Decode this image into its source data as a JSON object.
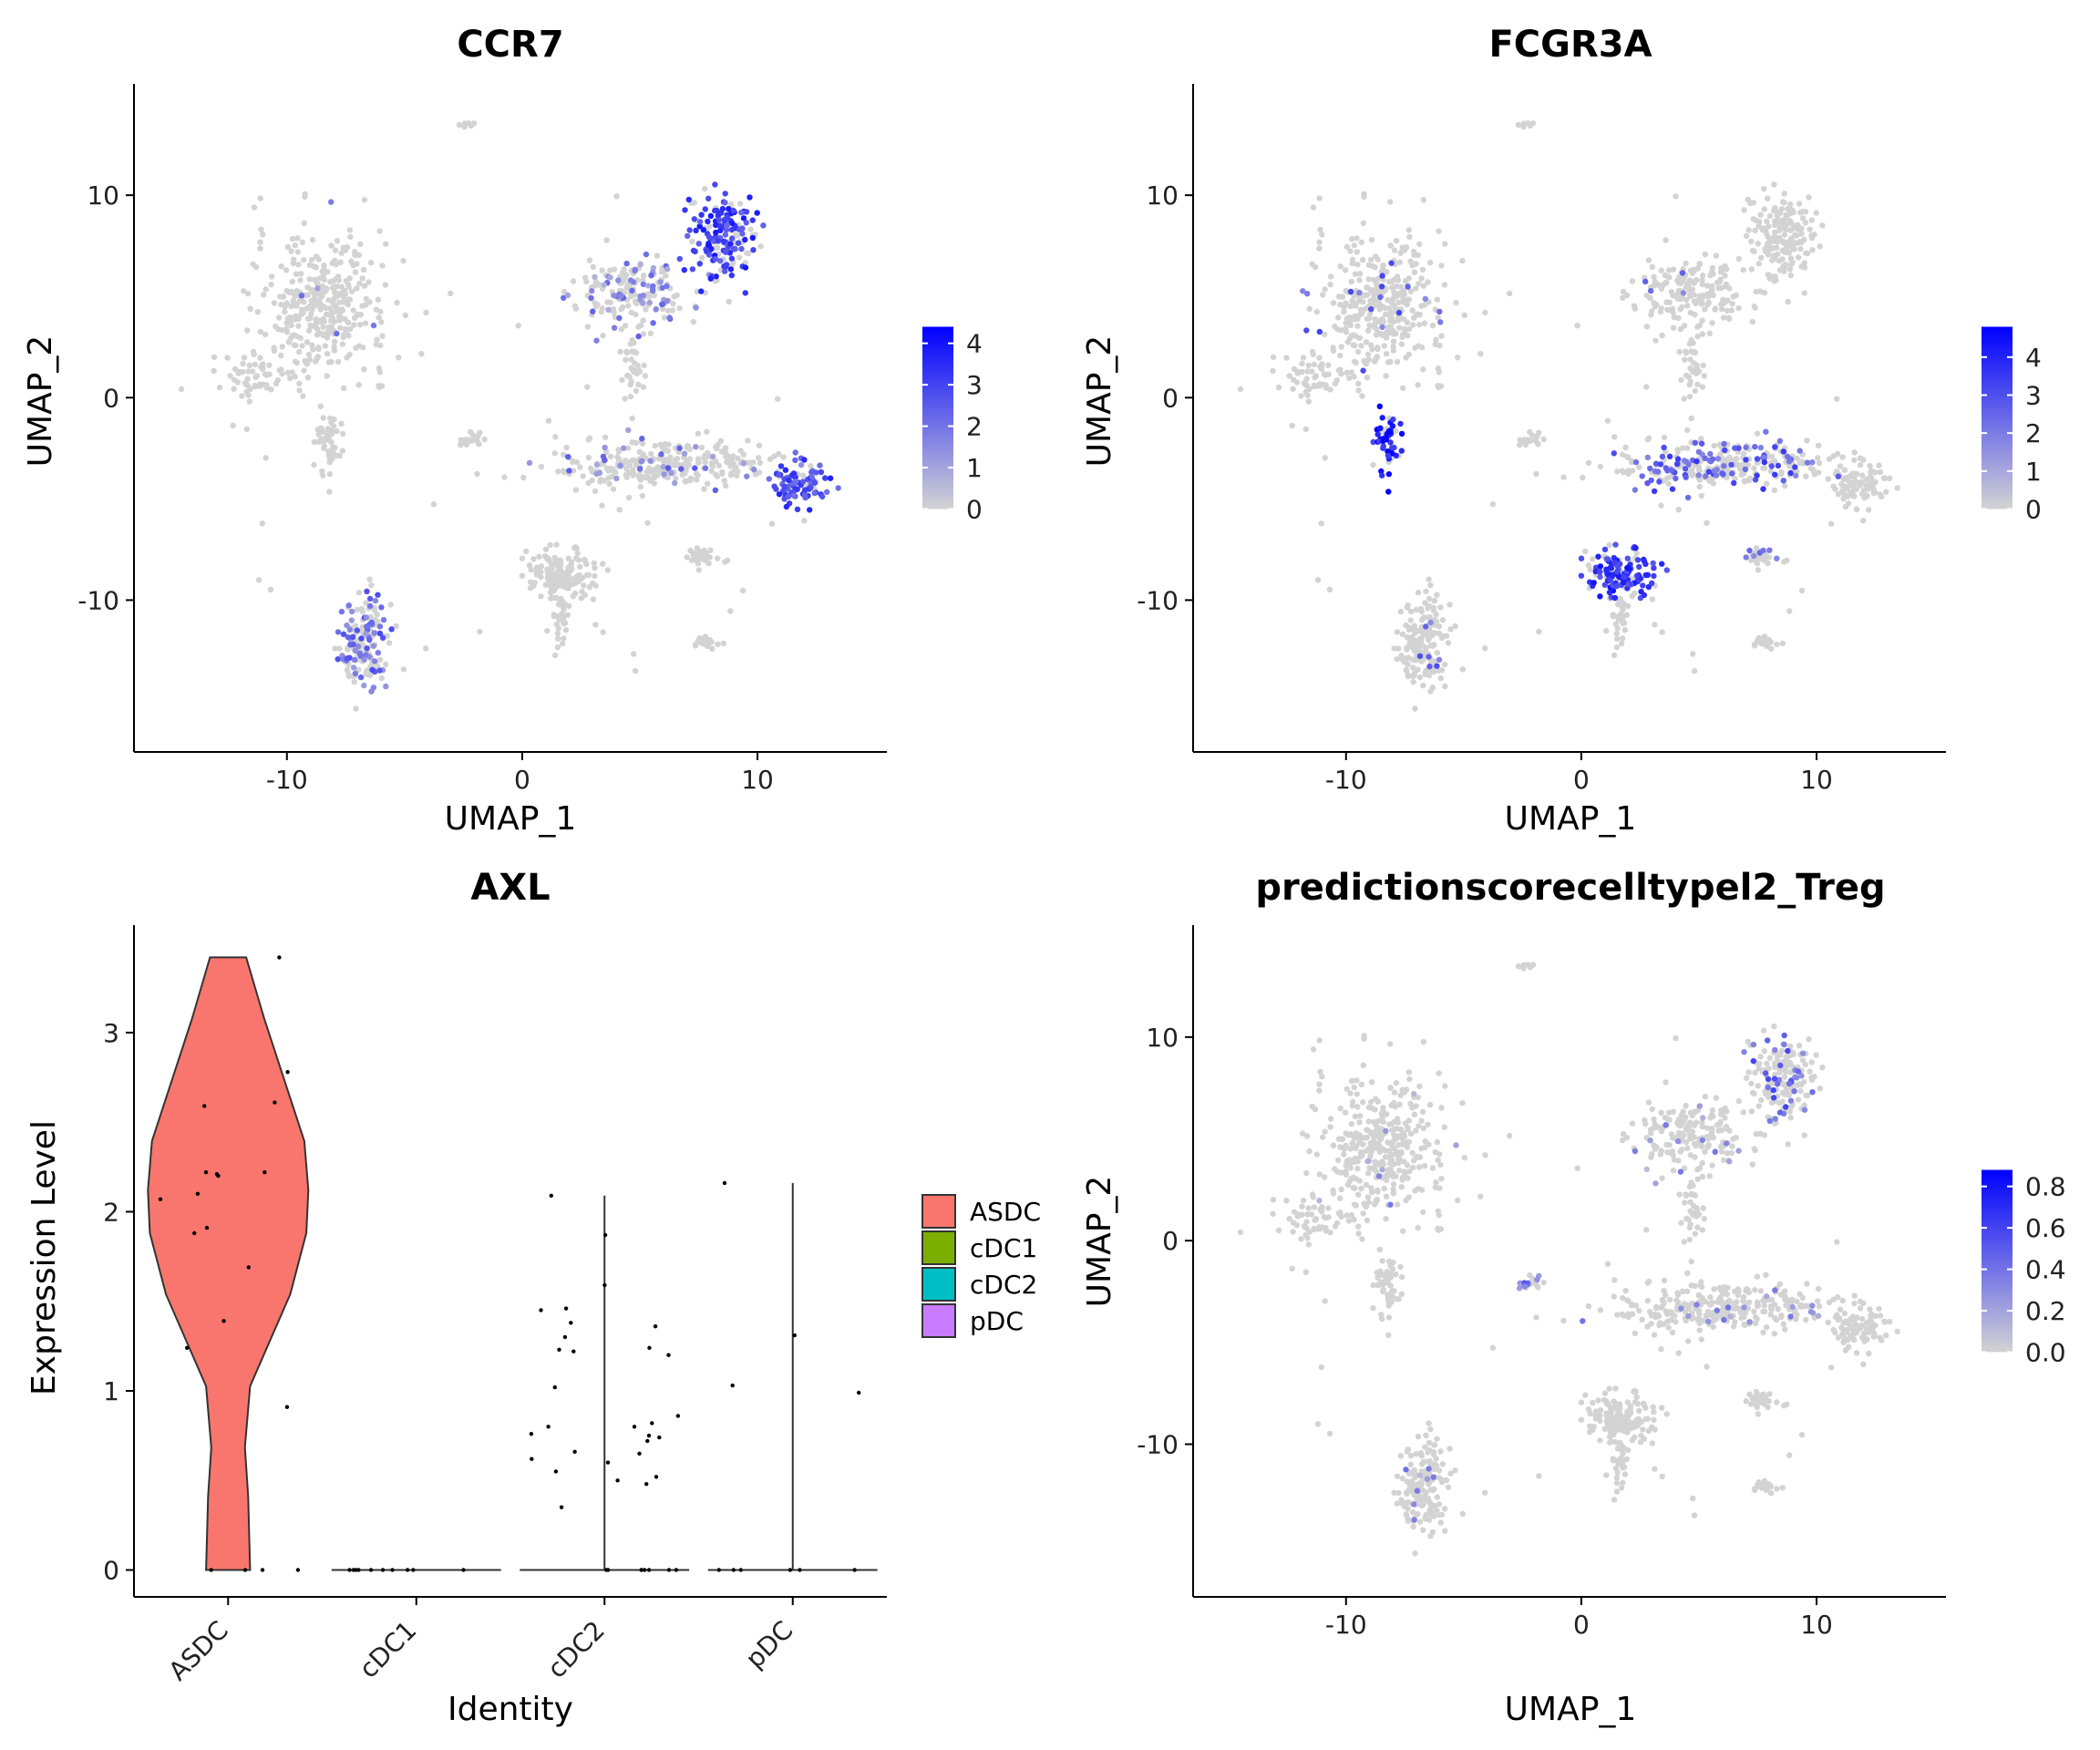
{
  "colors": {
    "low": "#d3d3d3",
    "high": "#0000ff",
    "axis": "#000000",
    "ASDC": "#F8766D",
    "cDC1": "#7CAE00",
    "cDC2": "#00BFC4",
    "pDC": "#C77CFF"
  },
  "chart_data": [
    {
      "type": "scatter",
      "title": "CCR7",
      "xlabel": "UMAP_1",
      "ylabel": "UMAP_2",
      "xlim": [
        -16.5,
        15.5
      ],
      "ylim": [
        -17.5,
        15.5
      ],
      "xticks": [
        "-10",
        "0",
        "10"
      ],
      "yticks": [
        "-10",
        "0",
        "10"
      ],
      "colorbar": {
        "ticks": [
          "0",
          "1",
          "2",
          "3",
          "4"
        ],
        "min": 0,
        "max": 4.4
      },
      "hotspots": [
        {
          "cluster": "Top-right upper lobe",
          "value": 3.0
        },
        {
          "cluster": "Top-right lower lobe",
          "value": 1.2
        },
        {
          "cluster": "Right far blob",
          "value": 2.8
        },
        {
          "cluster": "Bottom-left cluster",
          "value": 1.4
        }
      ]
    },
    {
      "type": "scatter",
      "title": "FCGR3A",
      "xlabel": "UMAP_1",
      "ylabel": "UMAP_2",
      "xlim": [
        -16.5,
        15.5
      ],
      "ylim": [
        -17.5,
        15.5
      ],
      "xticks": [
        "-10",
        "0",
        "10"
      ],
      "yticks": [
        "-10",
        "0",
        "10"
      ],
      "colorbar": {
        "ticks": [
          "0",
          "1",
          "2",
          "3",
          "4"
        ],
        "min": 0,
        "max": 4.8
      },
      "hotspots": [
        {
          "cluster": "Left tail",
          "value": 3.6
        },
        {
          "cluster": "Bottom-center blob",
          "value": 3.2
        },
        {
          "cluster": "Middle-right band, left part",
          "value": 2.2
        },
        {
          "cluster": "Left large blob",
          "value": 0.8
        }
      ]
    },
    {
      "type": "violin",
      "title": "AXL",
      "xlabel": "Identity",
      "ylabel": "Expression Level",
      "ylim": [
        -0.15,
        3.6
      ],
      "yticks": [
        0,
        1,
        2,
        3
      ],
      "categories": [
        "ASDC",
        "cDC1",
        "cDC2",
        "pDC"
      ],
      "legend": [
        "ASDC",
        "cDC1",
        "cDC2",
        "pDC"
      ],
      "legend_position": "right",
      "violin_max": [
        3.42,
        0,
        2.09,
        2.16
      ],
      "points": {
        "ASDC": [
          3.42,
          2.61,
          2.59,
          2.78,
          2.22,
          2.22,
          2.21,
          2.2,
          2.07,
          2.1,
          1.91,
          1.88,
          1.69,
          1.39,
          1.24,
          0.91,
          0,
          0,
          0,
          0
        ],
        "cDC1": [
          0,
          0,
          0,
          0,
          0,
          0,
          0,
          0,
          0,
          0
        ],
        "cDC2": [
          2.09,
          1.87,
          1.45,
          1.2,
          1.22,
          1.24,
          1.23,
          1.3,
          1.38,
          1.36,
          1.59,
          1.46,
          1.02,
          0.86,
          0.8,
          0.75,
          0.76,
          0.74,
          0.6,
          0.62,
          0.55,
          0.5,
          0.48,
          0.35,
          0.65,
          0.66,
          0.8,
          0.82,
          0.72,
          0.52,
          0,
          0,
          0,
          0,
          0,
          0,
          0,
          0
        ],
        "pDC": [
          2.16,
          1.31,
          1.03,
          0.99,
          0,
          0,
          0,
          0,
          0,
          0
        ]
      }
    },
    {
      "type": "scatter",
      "title": "predictionscorecelltypel2_Treg",
      "xlabel": "UMAP_1",
      "ylabel": "UMAP_2",
      "xlim": [
        -16.5,
        15.5
      ],
      "ylim": [
        -17.5,
        15.5
      ],
      "xticks": [
        "-10",
        "0",
        "10"
      ],
      "yticks": [
        "-10",
        "0",
        "10"
      ],
      "colorbar": {
        "ticks": [
          "0.0",
          "0.2",
          "0.4",
          "0.6",
          "0.8"
        ],
        "min": 0,
        "max": 0.88
      },
      "hotspots": [
        {
          "cluster": "Top-right cluster, right edge",
          "value": 0.75
        },
        {
          "cluster": "Middle-right band, right part",
          "value": 0.25
        },
        {
          "cluster": "Left cluster, edge",
          "value": 0.18
        }
      ]
    }
  ]
}
